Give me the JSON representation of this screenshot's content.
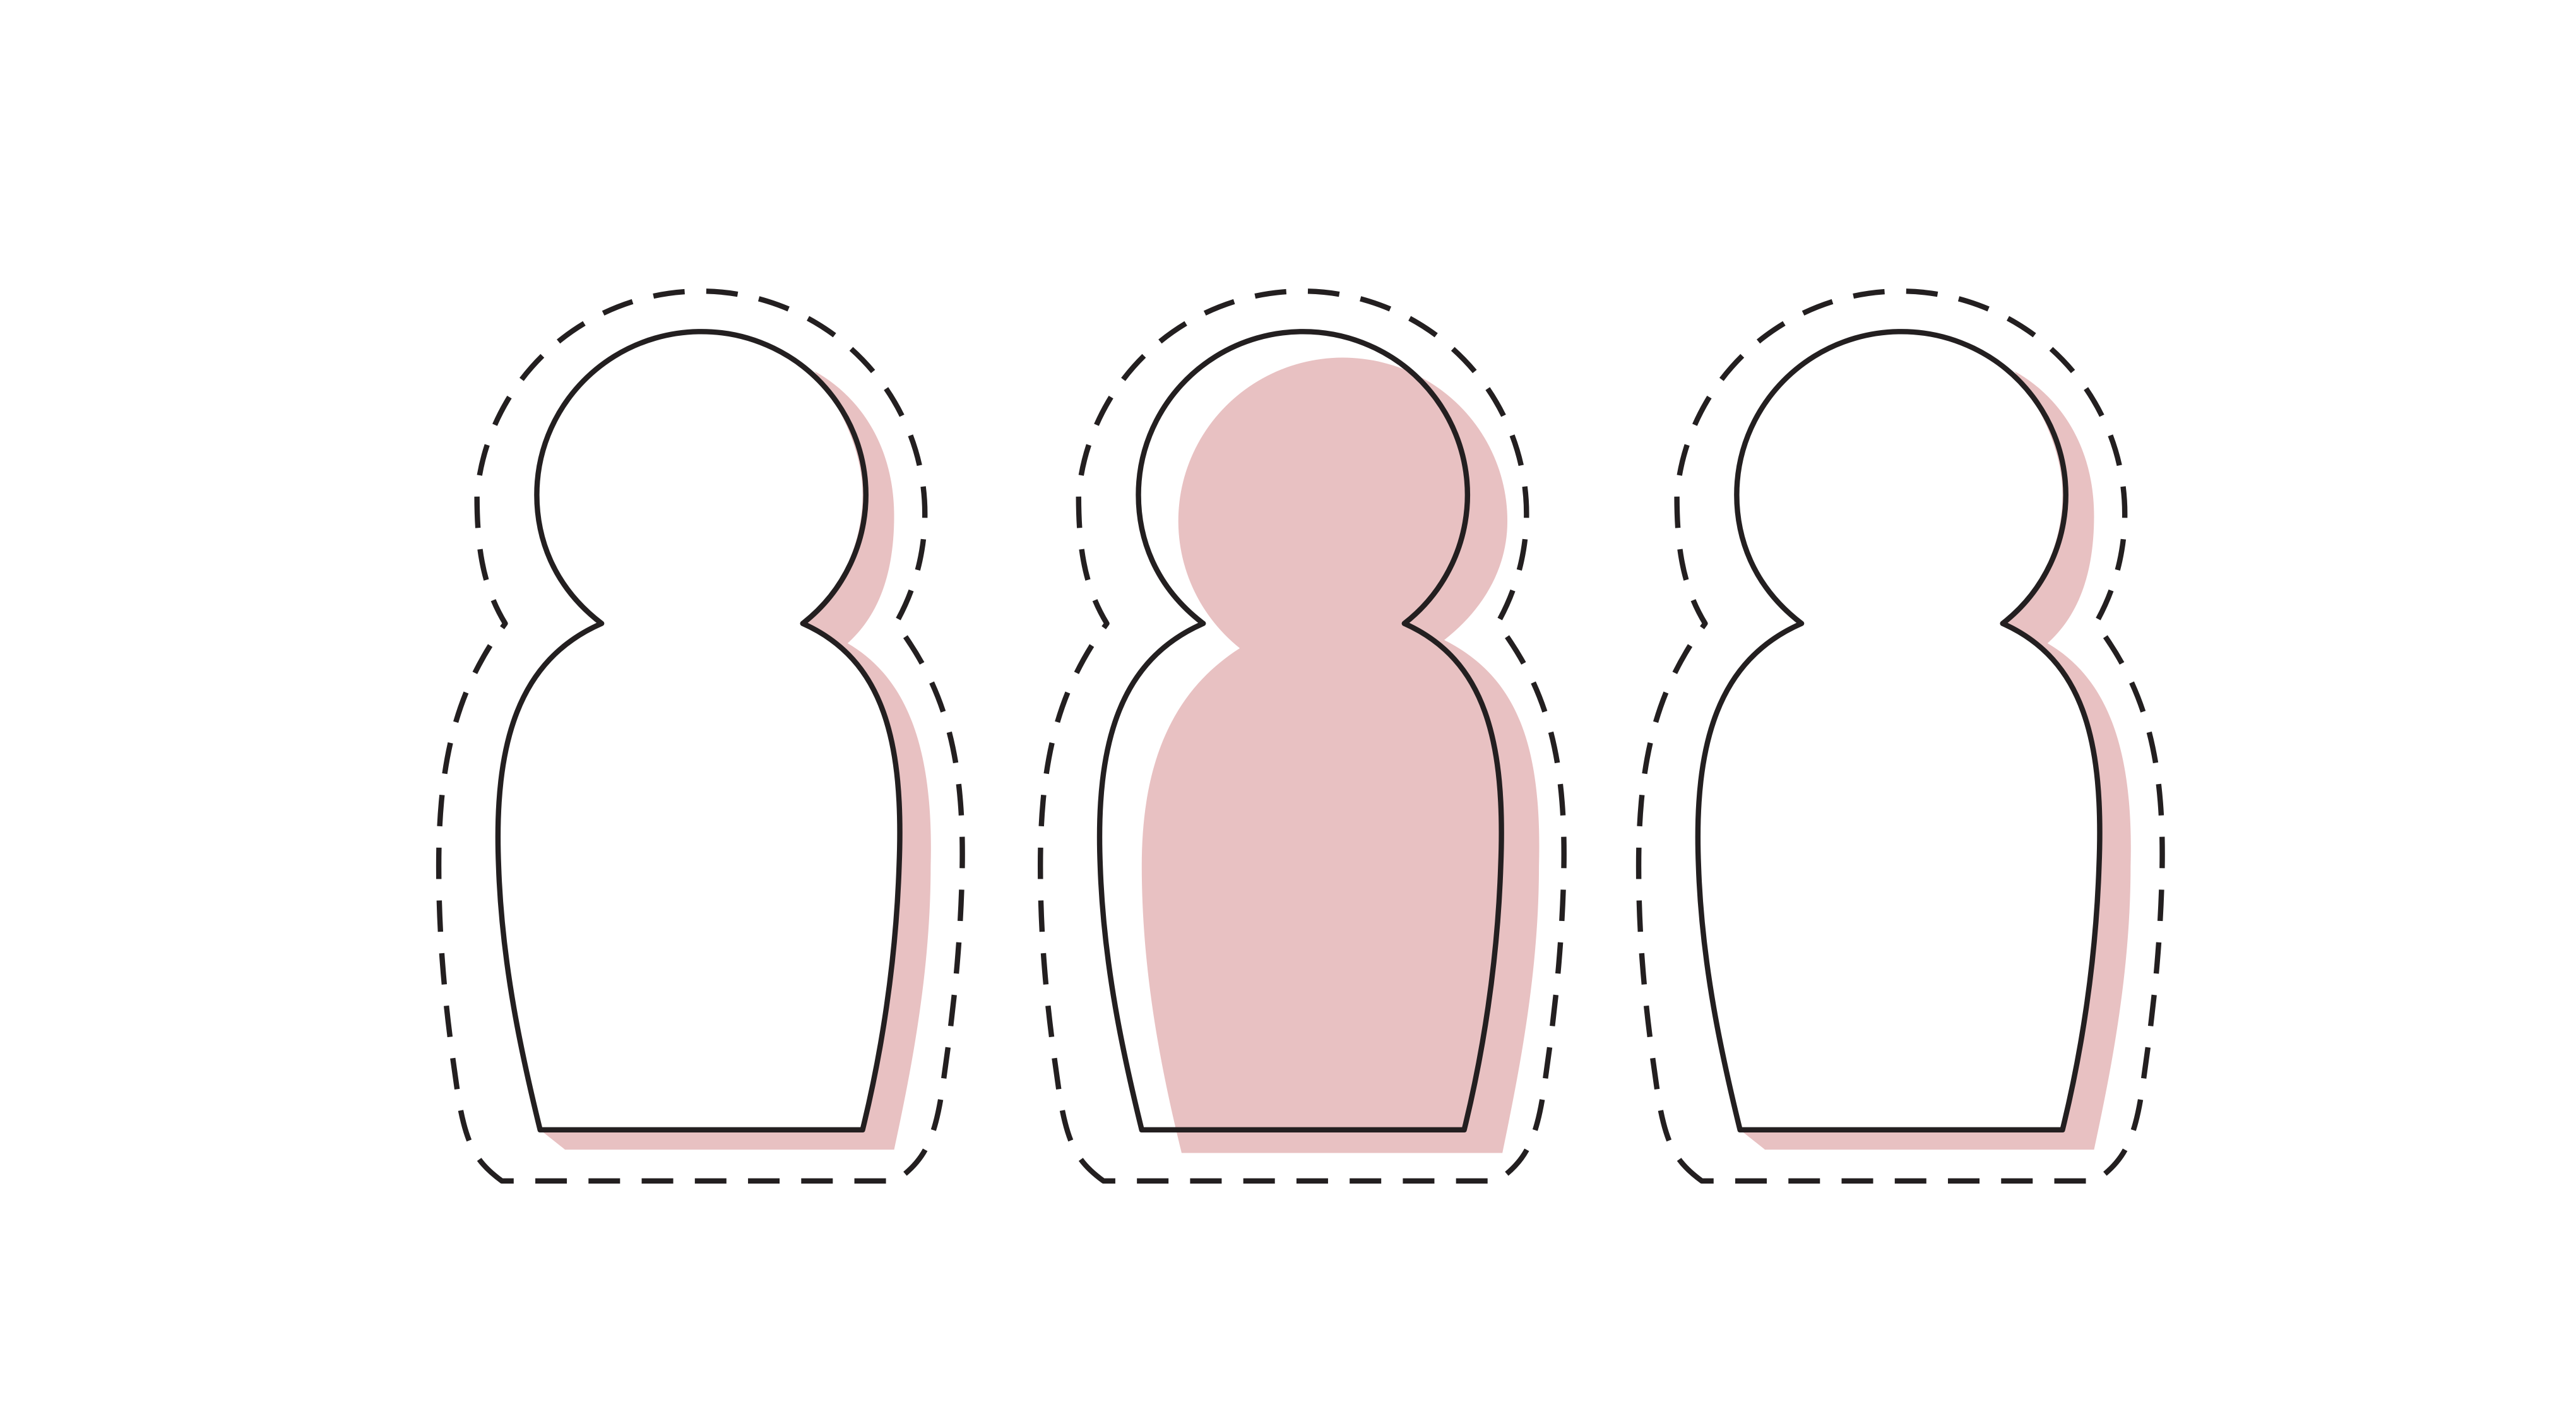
{
  "colors": {
    "background": "#ffffff",
    "outline": "#231f20",
    "pink_fill": "#e8c1c2"
  },
  "figures": [
    {
      "name": "figure-left",
      "icon": "person-icon",
      "fill_style": "offset-shadow",
      "highlighted": false
    },
    {
      "name": "figure-center",
      "icon": "person-icon",
      "fill_style": "solid-fill",
      "highlighted": true
    },
    {
      "name": "figure-right",
      "icon": "person-icon",
      "fill_style": "offset-shadow",
      "highlighted": false
    }
  ]
}
